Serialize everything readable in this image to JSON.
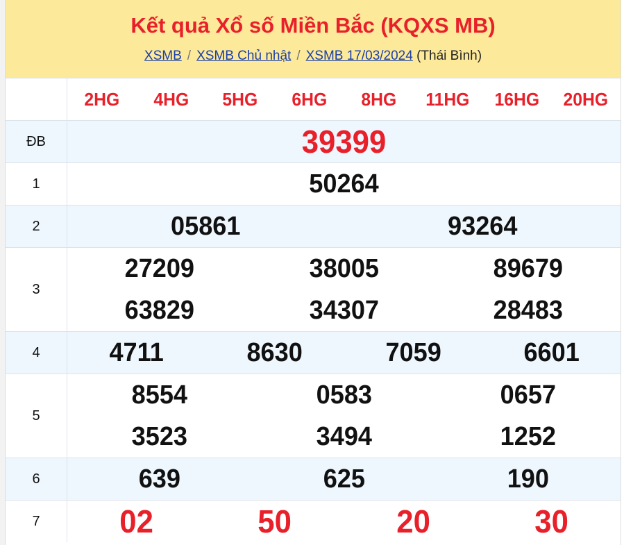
{
  "header": {
    "title": "Kết quả Xổ số Miền Bắc (KQXS MB)",
    "breadcrumb": [
      {
        "label": "XSMB"
      },
      {
        "label": "XSMB Chủ nhật"
      },
      {
        "label": "XSMB 17/03/2024"
      }
    ],
    "province": "(Thái Bình)",
    "separator": "/"
  },
  "codes": [
    "2HG",
    "4HG",
    "5HG",
    "6HG",
    "8HG",
    "11HG",
    "16HG",
    "20HG"
  ],
  "prizes": [
    {
      "label": "ĐB",
      "cols": 1,
      "numbers": [
        "39399"
      ]
    },
    {
      "label": "1",
      "cols": 1,
      "numbers": [
        "50264"
      ]
    },
    {
      "label": "2",
      "cols": 2,
      "numbers": [
        "05861",
        "93264"
      ]
    },
    {
      "label": "3",
      "cols": 3,
      "numbers": [
        "27209",
        "38005",
        "89679",
        "63829",
        "34307",
        "28483"
      ]
    },
    {
      "label": "4",
      "cols": 4,
      "numbers": [
        "4711",
        "8630",
        "7059",
        "6601"
      ]
    },
    {
      "label": "5",
      "cols": 3,
      "numbers": [
        "8554",
        "0583",
        "0657",
        "3523",
        "3494",
        "1252"
      ]
    },
    {
      "label": "6",
      "cols": 3,
      "numbers": [
        "639",
        "625",
        "190"
      ]
    },
    {
      "label": "7",
      "cols": 4,
      "numbers": [
        "02",
        "50",
        "20",
        "30"
      ]
    }
  ],
  "colors": {
    "accent_red": "#e8202a",
    "header_bg": "#fde99a",
    "alt_row_bg": "#eef6fe",
    "link": "#1a3fa8"
  }
}
